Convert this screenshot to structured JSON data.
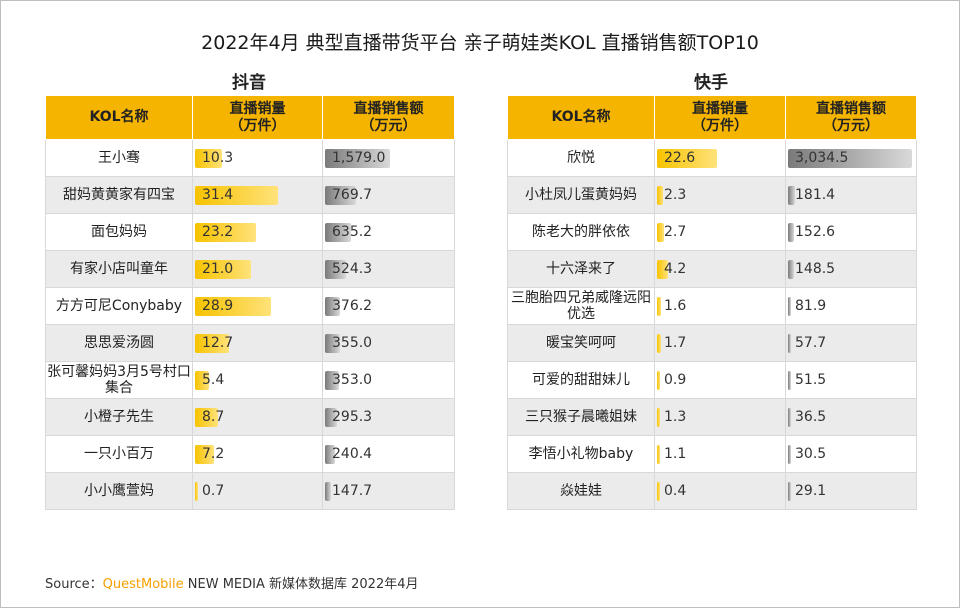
{
  "title": "2022年4月 典型直播带货平台 亲子萌娃类KOL 直播销售额TOP10",
  "header": {
    "name": "KOL名称",
    "volume_line1": "直播销量",
    "volume_line2": "（万件）",
    "sales_line1": "直播销售额",
    "sales_line2": "（万元）"
  },
  "source": {
    "label": "Source：",
    "brand": "QuestMobile",
    "rest": " NEW MEDIA 新媒体数据库 2022年4月"
  },
  "colors": {
    "header": "#f5b400",
    "volume_bar": "#f7c300",
    "sales_bar": "#7a7a7a"
  },
  "chart_data": [
    {
      "type": "table",
      "title": "抖音",
      "columns": [
        "KOL名称",
        "直播销量（万件）",
        "直播销售额（万元）"
      ],
      "rows": [
        {
          "name": "王小骞",
          "volume": 10.3,
          "volume_label": "10.3",
          "sales": 1579.0,
          "sales_label": "1,579.0"
        },
        {
          "name": "甜妈黄黄家有四宝",
          "volume": 31.4,
          "volume_label": "31.4",
          "sales": 769.7,
          "sales_label": "769.7"
        },
        {
          "name": "面包妈妈",
          "volume": 23.2,
          "volume_label": "23.2",
          "sales": 635.2,
          "sales_label": "635.2"
        },
        {
          "name": "有家小店叫童年",
          "volume": 21.0,
          "volume_label": "21.0",
          "sales": 524.3,
          "sales_label": "524.3"
        },
        {
          "name": "方方可尼Conybaby",
          "volume": 28.9,
          "volume_label": "28.9",
          "sales": 376.2,
          "sales_label": "376.2"
        },
        {
          "name": "思思爱汤圆",
          "volume": 12.7,
          "volume_label": "12.7",
          "sales": 355.0,
          "sales_label": "355.0"
        },
        {
          "name": "张可馨妈妈3月5号村口集合",
          "volume": 5.4,
          "volume_label": "5.4",
          "sales": 353.0,
          "sales_label": "353.0"
        },
        {
          "name": "小橙子先生",
          "volume": 8.7,
          "volume_label": "8.7",
          "sales": 295.3,
          "sales_label": "295.3"
        },
        {
          "name": "一只小百万",
          "volume": 7.2,
          "volume_label": "7.2",
          "sales": 240.4,
          "sales_label": "240.4"
        },
        {
          "name": "小小鹰萱妈",
          "volume": 0.7,
          "volume_label": "0.7",
          "sales": 147.7,
          "sales_label": "147.7"
        }
      ]
    },
    {
      "type": "table",
      "title": "快手",
      "columns": [
        "KOL名称",
        "直播销量（万件）",
        "直播销售额（万元）"
      ],
      "rows": [
        {
          "name": "欣悦",
          "volume": 22.6,
          "volume_label": "22.6",
          "sales": 3034.5,
          "sales_label": "3,034.5"
        },
        {
          "name": "小杜凤儿蛋黄妈妈",
          "volume": 2.3,
          "volume_label": "2.3",
          "sales": 181.4,
          "sales_label": "181.4"
        },
        {
          "name": "陈老大的胖依依",
          "volume": 2.7,
          "volume_label": "2.7",
          "sales": 152.6,
          "sales_label": "152.6"
        },
        {
          "name": "十六泽来了",
          "volume": 4.2,
          "volume_label": "4.2",
          "sales": 148.5,
          "sales_label": "148.5"
        },
        {
          "name": "三胞胎四兄弟威隆远阳优选",
          "volume": 1.6,
          "volume_label": "1.6",
          "sales": 81.9,
          "sales_label": "81.9"
        },
        {
          "name": "暖宝笑呵呵",
          "volume": 1.7,
          "volume_label": "1.7",
          "sales": 57.7,
          "sales_label": "57.7"
        },
        {
          "name": "可爱的甜甜妹儿",
          "volume": 0.9,
          "volume_label": "0.9",
          "sales": 51.5,
          "sales_label": "51.5"
        },
        {
          "name": "三只猴子晨曦姐妹",
          "volume": 1.3,
          "volume_label": "1.3",
          "sales": 36.5,
          "sales_label": "36.5"
        },
        {
          "name": "李悟小礼物baby",
          "volume": 1.1,
          "volume_label": "1.1",
          "sales": 30.5,
          "sales_label": "30.5"
        },
        {
          "name": "焱娃娃",
          "volume": 0.4,
          "volume_label": "0.4",
          "sales": 29.1,
          "sales_label": "29.1"
        }
      ]
    }
  ]
}
